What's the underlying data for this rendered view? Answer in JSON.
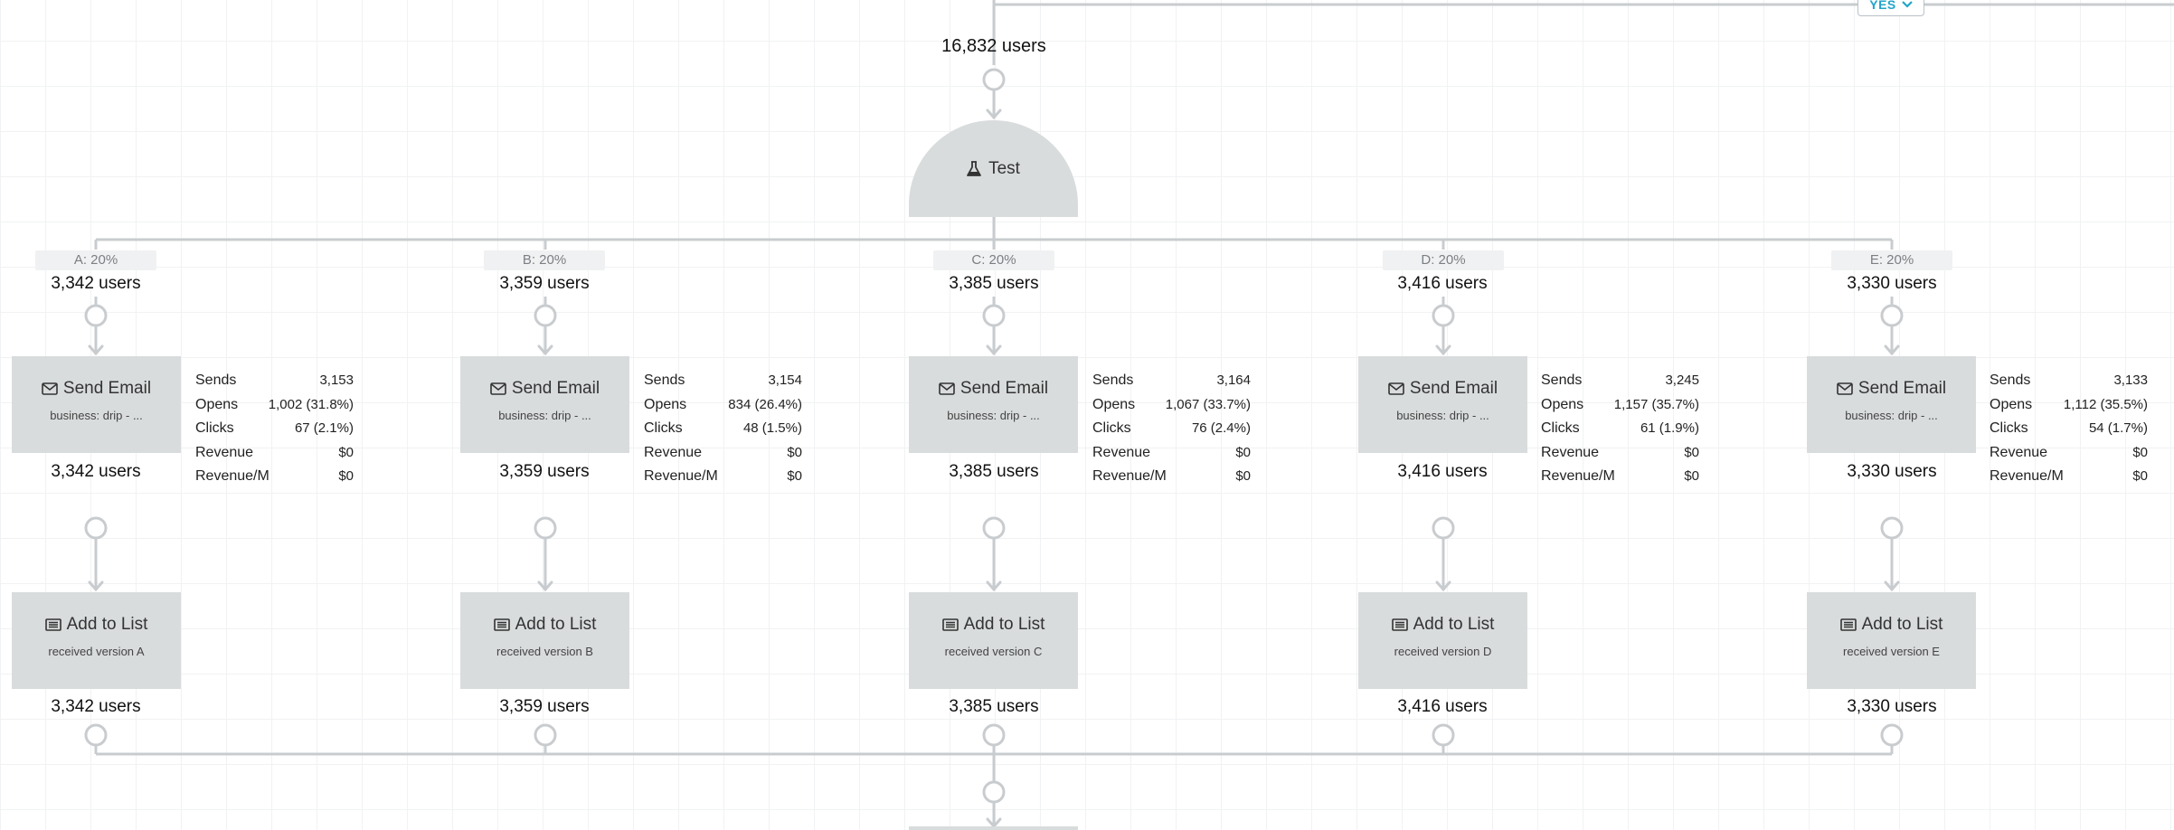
{
  "entry": {
    "users_label": "16,832 users",
    "yes_label": "YES"
  },
  "test_node": {
    "label": "Test"
  },
  "branches": [
    {
      "tag": "A: 20%",
      "users_in": "3,342 users",
      "email": {
        "label": "Send Email",
        "subtitle": "business: drip - ..."
      },
      "users_after_email": "3,342 users",
      "stats": [
        {
          "label": "Sends",
          "value": "3,153"
        },
        {
          "label": "Opens",
          "value": "1,002 (31.8%)"
        },
        {
          "label": "Clicks",
          "value": "67 (2.1%)"
        },
        {
          "label": "Revenue",
          "value": "$0"
        },
        {
          "label": "Revenue/M",
          "value": "$0"
        }
      ],
      "list": {
        "label": "Add to List",
        "subtitle": "received version A"
      },
      "users_after_list": "3,342 users"
    },
    {
      "tag": "B: 20%",
      "users_in": "3,359 users",
      "email": {
        "label": "Send Email",
        "subtitle": "business: drip - ..."
      },
      "users_after_email": "3,359 users",
      "stats": [
        {
          "label": "Sends",
          "value": "3,154"
        },
        {
          "label": "Opens",
          "value": "834 (26.4%)"
        },
        {
          "label": "Clicks",
          "value": "48 (1.5%)"
        },
        {
          "label": "Revenue",
          "value": "$0"
        },
        {
          "label": "Revenue/M",
          "value": "$0"
        }
      ],
      "list": {
        "label": "Add to List",
        "subtitle": "received version B"
      },
      "users_after_list": "3,359 users"
    },
    {
      "tag": "C: 20%",
      "users_in": "3,385 users",
      "email": {
        "label": "Send Email",
        "subtitle": "business: drip - ..."
      },
      "users_after_email": "3,385 users",
      "stats": [
        {
          "label": "Sends",
          "value": "3,164"
        },
        {
          "label": "Opens",
          "value": "1,067 (33.7%)"
        },
        {
          "label": "Clicks",
          "value": "76 (2.4%)"
        },
        {
          "label": "Revenue",
          "value": "$0"
        },
        {
          "label": "Revenue/M",
          "value": "$0"
        }
      ],
      "list": {
        "label": "Add to List",
        "subtitle": "received version C"
      },
      "users_after_list": "3,385 users"
    },
    {
      "tag": "D: 20%",
      "users_in": "3,416 users",
      "email": {
        "label": "Send Email",
        "subtitle": "business: drip - ..."
      },
      "users_after_email": "3,416 users",
      "stats": [
        {
          "label": "Sends",
          "value": "3,245"
        },
        {
          "label": "Opens",
          "value": "1,157 (35.7%)"
        },
        {
          "label": "Clicks",
          "value": "61 (1.9%)"
        },
        {
          "label": "Revenue",
          "value": "$0"
        },
        {
          "label": "Revenue/M",
          "value": "$0"
        }
      ],
      "list": {
        "label": "Add to List",
        "subtitle": "received version D"
      },
      "users_after_list": "3,416 users"
    },
    {
      "tag": "E: 20%",
      "users_in": "3,330 users",
      "email": {
        "label": "Send Email",
        "subtitle": "business: drip - ..."
      },
      "users_after_email": "3,330 users",
      "stats": [
        {
          "label": "Sends",
          "value": "3,133"
        },
        {
          "label": "Opens",
          "value": "1,112 (35.5%)"
        },
        {
          "label": "Clicks",
          "value": "54 (1.7%)"
        },
        {
          "label": "Revenue",
          "value": "$0"
        },
        {
          "label": "Revenue/M",
          "value": "$0"
        }
      ],
      "list": {
        "label": "Add to List",
        "subtitle": "received version E"
      },
      "users_after_list": "3,330 users"
    }
  ]
}
